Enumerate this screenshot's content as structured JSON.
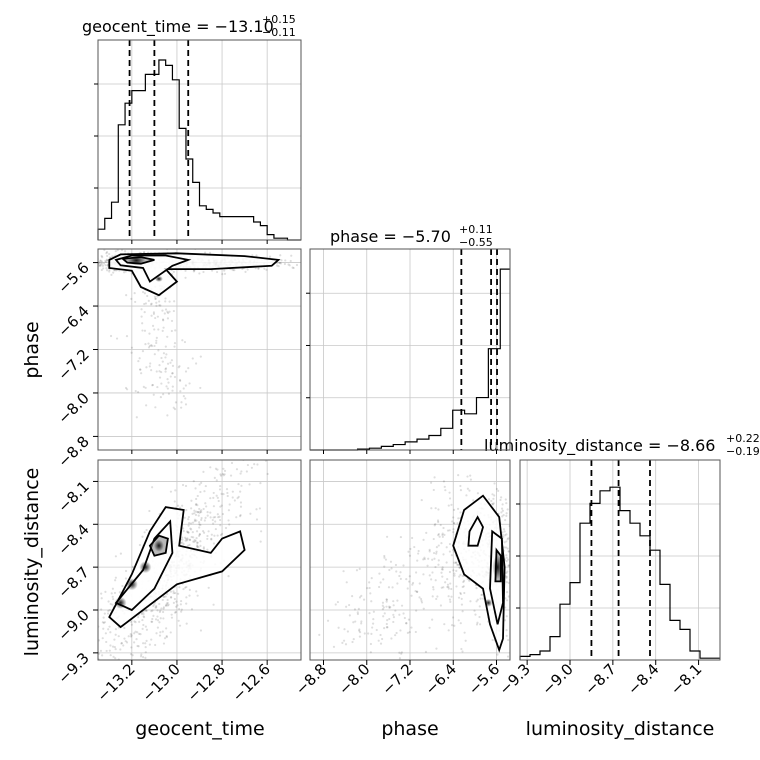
{
  "chart_data": {
    "type": "scatter",
    "title": "",
    "parameters": [
      {
        "name": "geocent_time",
        "axis_label": "geocent_time",
        "range": [
          -13.35,
          -12.45
        ],
        "ticks": [
          -13.2,
          -13.0,
          -12.8,
          -12.6
        ],
        "tick_labels": [
          "−13.2",
          "−13.0",
          "−12.8",
          "−12.6"
        ],
        "median": -13.1,
        "plus": 0.15,
        "minus": 0.11,
        "title_main": "geocent_time = −13.10",
        "title_sup": "+0.15",
        "title_sub": "−0.11",
        "hist_edges": [
          -13.35,
          -13.32,
          -13.29,
          -13.26,
          -13.23,
          -13.2,
          -13.17,
          -13.14,
          -13.11,
          -13.08,
          -13.05,
          -13.02,
          -12.99,
          -12.96,
          -12.93,
          -12.9,
          -12.87,
          -12.84,
          -12.81,
          -12.78,
          -12.75,
          -12.72,
          -12.69,
          -12.66,
          -12.63,
          -12.6,
          -12.57,
          -12.54,
          -12.51,
          -12.48,
          -12.45
        ],
        "hist_counts": [
          0.06,
          0.12,
          0.21,
          0.64,
          0.76,
          0.83,
          0.83,
          0.92,
          0.92,
          1.0,
          0.97,
          0.89,
          0.62,
          0.45,
          0.32,
          0.19,
          0.17,
          0.15,
          0.13,
          0.13,
          0.13,
          0.13,
          0.13,
          0.1,
          0.08,
          0.03,
          0.01,
          0.01,
          0,
          0
        ]
      },
      {
        "name": "phase",
        "axis_label": "phase",
        "range": [
          -9.05,
          -5.35
        ],
        "ticks": [
          -8.8,
          -8.0,
          -7.2,
          -6.4,
          -5.6
        ],
        "tick_labels": [
          "−8.8",
          "−8.0",
          "−7.2",
          "−6.4",
          "−5.6"
        ],
        "median": -5.7,
        "plus": 0.11,
        "minus": 0.55,
        "title_main": "phase = −5.70",
        "title_sup": "+0.11",
        "title_sub": "−0.55",
        "hist_edges": [
          -9.05,
          -8.83,
          -8.61,
          -8.39,
          -8.17,
          -7.95,
          -7.73,
          -7.51,
          -7.29,
          -7.07,
          -6.85,
          -6.63,
          -6.41,
          -6.19,
          -5.97,
          -5.75,
          -5.53,
          -5.35
        ],
        "hist_counts": [
          0,
          0,
          0,
          0,
          0.005,
          0.01,
          0.02,
          0.03,
          0.045,
          0.06,
          0.08,
          0.12,
          0.22,
          0.2,
          0.29,
          0.56,
          1.0
        ]
      },
      {
        "name": "luminosity_distance",
        "axis_label": "luminosity_distance",
        "range": [
          -9.35,
          -7.95
        ],
        "ticks": [
          -9.3,
          -9.0,
          -8.7,
          -8.4,
          -8.1
        ],
        "tick_labels": [
          "−9.3",
          "−9.0",
          "−8.7",
          "−8.4",
          "−8.1"
        ],
        "median": -8.66,
        "plus": 0.22,
        "minus": 0.19,
        "title_main": "luminosity_distance = −8.66",
        "title_sup": "+0.22",
        "title_sub": "−0.19",
        "hist_edges": [
          -9.35,
          -9.28,
          -9.21,
          -9.14,
          -9.07,
          -9.0,
          -8.93,
          -8.86,
          -8.79,
          -8.72,
          -8.65,
          -8.58,
          -8.51,
          -8.44,
          -8.37,
          -8.3,
          -8.23,
          -8.16,
          -8.09,
          -8.02,
          -7.95
        ],
        "hist_counts": [
          0.02,
          0.03,
          0.05,
          0.13,
          0.31,
          0.43,
          0.76,
          0.87,
          0.94,
          0.96,
          0.83,
          0.76,
          0.69,
          0.61,
          0.42,
          0.22,
          0.17,
          0.05,
          0.01,
          0.01
        ]
      }
    ],
    "quantile_lines": "dashed lines at 16%, 50%, 84% quantiles",
    "contour_levels": 3,
    "grid": true,
    "legend": "none"
  }
}
